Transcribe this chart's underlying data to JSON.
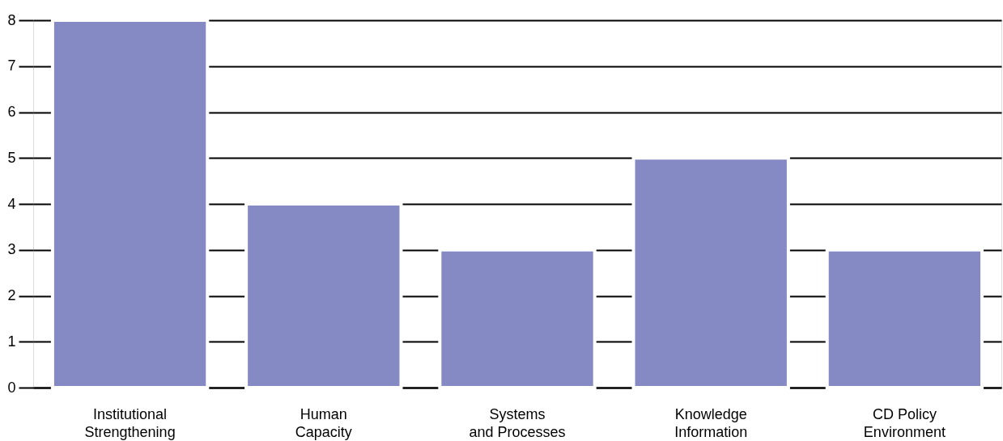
{
  "chart_data": {
    "type": "bar",
    "categories": [
      "Institutional\nStrengthening",
      "Human\nCapacity",
      "Systems\nand Processes",
      "Knowledge\nInformation",
      "CD Policy\nEnvironment"
    ],
    "values": [
      8,
      4,
      3,
      5,
      3
    ],
    "color": "#8589c4",
    "ylim": [
      0,
      8
    ],
    "yticks": [
      0,
      1,
      2,
      3,
      4,
      5,
      6,
      7,
      8
    ],
    "grid": "y"
  }
}
